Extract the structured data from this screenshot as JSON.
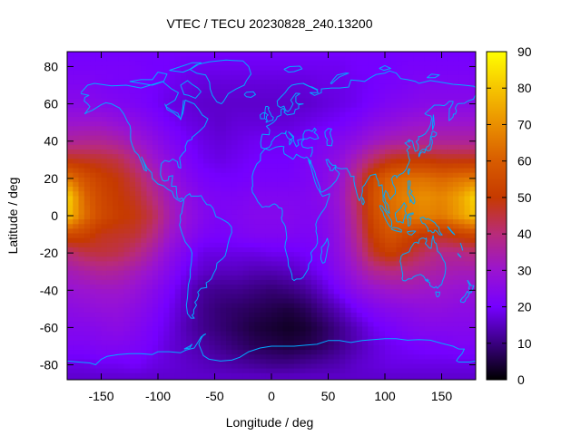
{
  "chart_data": {
    "type": "heatmap",
    "title": "VTEC / TECU 20230828_240.13200",
    "xlabel": "Longitude / deg",
    "ylabel": "Latitude / deg",
    "xlim": [
      -180,
      180
    ],
    "ylim": [
      -88,
      88
    ],
    "x_ticks": [
      -150,
      -100,
      -50,
      0,
      50,
      100,
      150
    ],
    "y_ticks": [
      -80,
      -60,
      -40,
      -20,
      0,
      20,
      40,
      60,
      80
    ],
    "colorbar": {
      "min": 0,
      "max": 90,
      "ticks": [
        0,
        10,
        20,
        30,
        40,
        50,
        60,
        70,
        80,
        90
      ],
      "colormap": [
        {
          "value": 0,
          "color": "#000000"
        },
        {
          "value": 10,
          "color": "#3a0080"
        },
        {
          "value": 20,
          "color": "#7500ff"
        },
        {
          "value": 30,
          "color": "#9a14d0"
        },
        {
          "value": 40,
          "color": "#b82b7a"
        },
        {
          "value": 50,
          "color": "#c63a00"
        },
        {
          "value": 60,
          "color": "#d85c00"
        },
        {
          "value": 70,
          "color": "#ea8f00"
        },
        {
          "value": 80,
          "color": "#f6c500"
        },
        {
          "value": 90,
          "color": "#ffff00"
        }
      ]
    },
    "longitudes": [
      -180,
      -165,
      -150,
      -135,
      -120,
      -105,
      -90,
      -75,
      -60,
      -45,
      -30,
      -15,
      0,
      15,
      30,
      45,
      60,
      75,
      90,
      105,
      120,
      135,
      150,
      165,
      180
    ],
    "latitudes": [
      -87.5,
      -80,
      -70,
      -60,
      -50,
      -40,
      -30,
      -20,
      -10,
      0,
      10,
      20,
      30,
      40,
      50,
      60,
      70,
      80,
      87.5
    ],
    "values": [
      [
        16,
        16,
        16,
        16,
        16,
        16,
        16,
        16,
        16,
        16,
        16,
        16,
        16,
        16,
        16,
        16,
        16,
        16,
        16,
        16,
        16,
        16,
        16,
        16,
        16
      ],
      [
        18,
        18,
        19,
        19,
        20,
        18,
        17,
        16,
        15,
        14,
        13,
        12,
        11,
        11,
        12,
        13,
        14,
        16,
        17,
        18,
        18,
        18,
        18,
        18,
        18
      ],
      [
        22,
        22,
        23,
        23,
        22,
        20,
        17,
        15,
        13,
        11,
        9,
        7,
        6,
        5,
        6,
        8,
        11,
        14,
        17,
        19,
        20,
        21,
        21,
        22,
        22
      ],
      [
        24,
        24,
        25,
        26,
        24,
        21,
        18,
        14,
        11,
        9,
        7,
        5,
        4,
        3,
        4,
        7,
        11,
        15,
        19,
        21,
        23,
        24,
        24,
        24,
        24
      ],
      [
        26,
        27,
        28,
        28,
        26,
        23,
        19,
        15,
        11,
        9,
        8,
        7,
        6,
        5,
        7,
        11,
        15,
        20,
        23,
        25,
        26,
        27,
        27,
        26,
        26
      ],
      [
        29,
        30,
        31,
        31,
        29,
        25,
        21,
        16,
        12,
        11,
        11,
        10,
        9,
        10,
        12,
        16,
        21,
        26,
        29,
        31,
        32,
        31,
        30,
        29,
        29
      ],
      [
        33,
        35,
        37,
        36,
        33,
        29,
        24,
        19,
        16,
        15,
        15,
        14,
        14,
        15,
        17,
        20,
        25,
        31,
        37,
        39,
        38,
        36,
        34,
        33,
        33
      ],
      [
        40,
        44,
        45,
        44,
        40,
        34,
        27,
        22,
        18,
        18,
        18,
        18,
        19,
        19,
        20,
        22,
        27,
        35,
        47,
        52,
        47,
        42,
        38,
        38,
        40
      ],
      [
        55,
        53,
        48,
        47,
        46,
        40,
        31,
        26,
        22,
        21,
        22,
        23,
        23,
        23,
        22,
        23,
        28,
        38,
        52,
        58,
        54,
        50,
        48,
        52,
        55
      ],
      [
        80,
        64,
        55,
        51,
        49,
        44,
        34,
        28,
        24,
        22,
        23,
        24,
        24,
        24,
        23,
        24,
        29,
        40,
        55,
        62,
        66,
        68,
        66,
        72,
        80
      ],
      [
        83,
        62,
        54,
        50,
        47,
        40,
        32,
        27,
        23,
        22,
        22,
        23,
        23,
        23,
        23,
        25,
        30,
        42,
        57,
        64,
        68,
        70,
        68,
        73,
        83
      ],
      [
        66,
        57,
        52,
        49,
        44,
        36,
        29,
        24,
        21,
        20,
        20,
        21,
        21,
        21,
        22,
        24,
        29,
        40,
        55,
        62,
        64,
        64,
        62,
        64,
        66
      ],
      [
        48,
        47,
        46,
        44,
        38,
        31,
        26,
        22,
        19,
        18,
        19,
        20,
        20,
        20,
        22,
        24,
        27,
        34,
        42,
        48,
        50,
        50,
        48,
        48,
        48
      ],
      [
        36,
        37,
        37,
        35,
        31,
        27,
        23,
        20,
        18,
        17,
        18,
        19,
        19,
        19,
        20,
        22,
        24,
        27,
        31,
        34,
        35,
        36,
        36,
        36,
        36
      ],
      [
        30,
        30,
        30,
        28,
        26,
        23,
        20,
        18,
        17,
        16,
        17,
        17,
        17,
        17,
        18,
        19,
        20,
        22,
        25,
        27,
        29,
        30,
        30,
        30,
        30
      ],
      [
        25,
        25,
        24,
        23,
        22,
        20,
        18,
        17,
        16,
        16,
        16,
        16,
        16,
        16,
        16,
        17,
        18,
        19,
        21,
        23,
        24,
        25,
        25,
        25,
        25
      ],
      [
        23,
        23,
        22,
        21,
        21,
        20,
        19,
        18,
        17,
        17,
        17,
        17,
        17,
        17,
        17,
        18,
        18,
        19,
        20,
        21,
        22,
        23,
        23,
        23,
        23
      ],
      [
        21,
        21,
        21,
        21,
        21,
        20,
        20,
        19,
        19,
        19,
        19,
        19,
        19,
        19,
        19,
        19,
        19,
        20,
        20,
        20,
        21,
        21,
        21,
        21,
        21
      ],
      [
        20,
        20,
        20,
        20,
        20,
        20,
        20,
        20,
        20,
        20,
        20,
        20,
        20,
        20,
        20,
        20,
        20,
        20,
        20,
        20,
        20,
        20,
        20,
        20,
        20
      ]
    ],
    "overlay": "coastlines",
    "overlay_color": "#00aaff",
    "grid": false
  }
}
